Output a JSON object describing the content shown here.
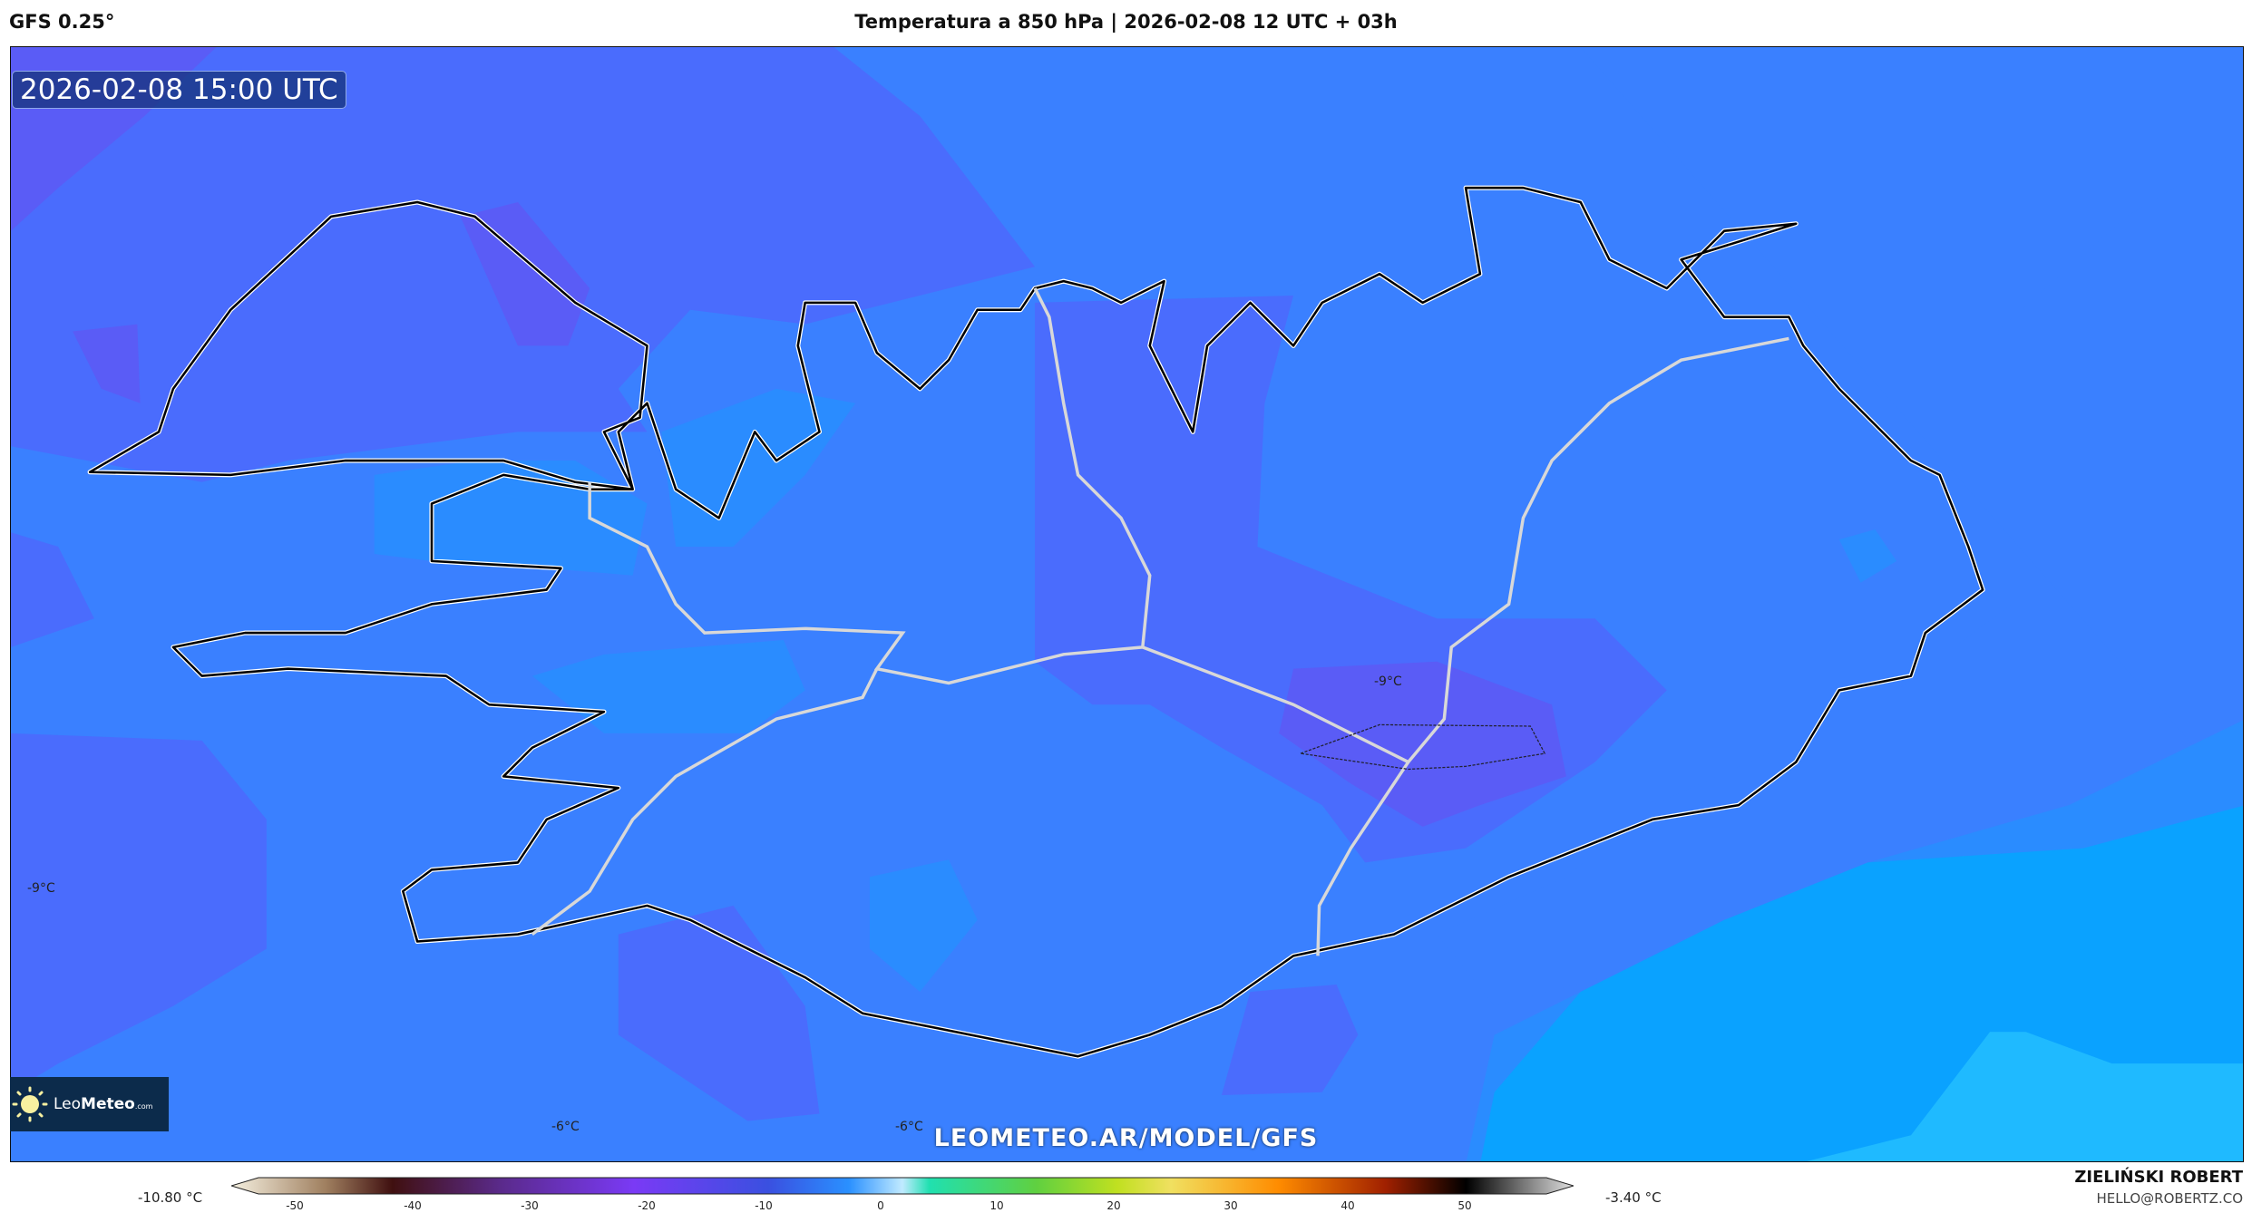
{
  "header": {
    "model": "GFS 0.25°",
    "title": "Temperatura a 850 hPa | 2026-02-08 12 UTC + 03h"
  },
  "map": {
    "timestamp": "2026-02-08 15:00 UTC",
    "site": "LEOMETEO.AR/MODEL/GFS",
    "contour_labels": [
      "-9°C",
      "-9°C",
      "-6°C",
      "-6°C"
    ],
    "colors": {
      "violet": "#5a5cf6",
      "indigo": "#4a6cfd",
      "blue": "#3a80ff",
      "mid_blue": "#2a8cff",
      "light_blue": "#0aa2ff",
      "sky": "#1fbaff",
      "coast": "#000000",
      "road": "#d8d8d8"
    }
  },
  "logo": {
    "brand_light": "Leo",
    "brand_bold": "Meteo",
    "suffix": ".com"
  },
  "colorbar": {
    "min_value": "-10.80 °C",
    "max_value": "-3.40 °C",
    "ticks": [
      "-50",
      "-40",
      "-30",
      "-20",
      "-10",
      "0",
      "10",
      "20",
      "30",
      "40",
      "50"
    ]
  },
  "footer": {
    "author": "ZIELIŃSKI ROBERT",
    "email": "HELLO@ROBERTZ.CO"
  }
}
